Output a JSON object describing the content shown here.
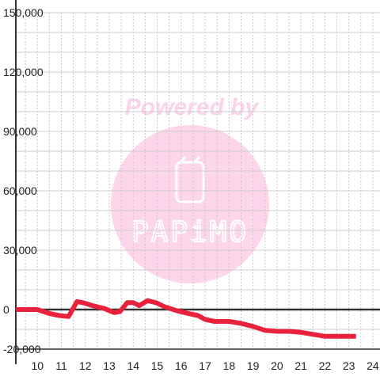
{
  "chart_data": {
    "type": "line",
    "title": "",
    "xlabel": "",
    "ylabel": "",
    "xlim": [
      9.1,
      24.3
    ],
    "ylim": [
      -20000,
      150000
    ],
    "x_ticks": [
      10,
      11,
      12,
      13,
      14,
      15,
      16,
      17,
      18,
      19,
      20,
      21,
      22,
      23,
      24
    ],
    "y_ticks": [
      -20000,
      0,
      30000,
      60000,
      90000,
      120000,
      150000
    ],
    "x_tick_labels": [
      "10",
      "11",
      "12",
      "13",
      "14",
      "15",
      "16",
      "17",
      "18",
      "19",
      "20",
      "21",
      "22",
      "23",
      "24"
    ],
    "y_tick_labels": [
      "-20,000",
      "0",
      "30,000",
      "60,000",
      "90,000",
      "120,000",
      "150,000"
    ],
    "grid": true,
    "series": [
      {
        "color": "#e8223c",
        "x": [
          9.1,
          10.0,
          10.5,
          10.9,
          11.3,
          11.65,
          11.9,
          12.3,
          12.8,
          13.2,
          13.45,
          13.75,
          14.0,
          14.25,
          14.6,
          14.95,
          15.3,
          15.8,
          16.3,
          16.7,
          17.0,
          17.4,
          18.0,
          18.5,
          19.0,
          19.5,
          20.0,
          20.5,
          21.0,
          21.5,
          22.0,
          22.5,
          23.0,
          23.3
        ],
        "y": [
          0,
          0,
          -2000,
          -3000,
          -3500,
          4000,
          3500,
          2000,
          500,
          -1500,
          -1000,
          3500,
          3500,
          2000,
          4500,
          3500,
          1500,
          -500,
          -2000,
          -3000,
          -5000,
          -6000,
          -6000,
          -7000,
          -8500,
          -10500,
          -11000,
          -11000,
          -11500,
          -12500,
          -13500,
          -13500,
          -13500,
          -13500
        ]
      }
    ]
  },
  "watermark": {
    "line1": "Powered by",
    "logo_text": "PAPiMO",
    "color": "#fbd3ea",
    "circle_color": "#fdd6ec"
  },
  "colors": {
    "axis": "#333333",
    "grid_major": "#cccccc",
    "grid_minor": "#c8c8c8",
    "background": "#ffffff"
  }
}
